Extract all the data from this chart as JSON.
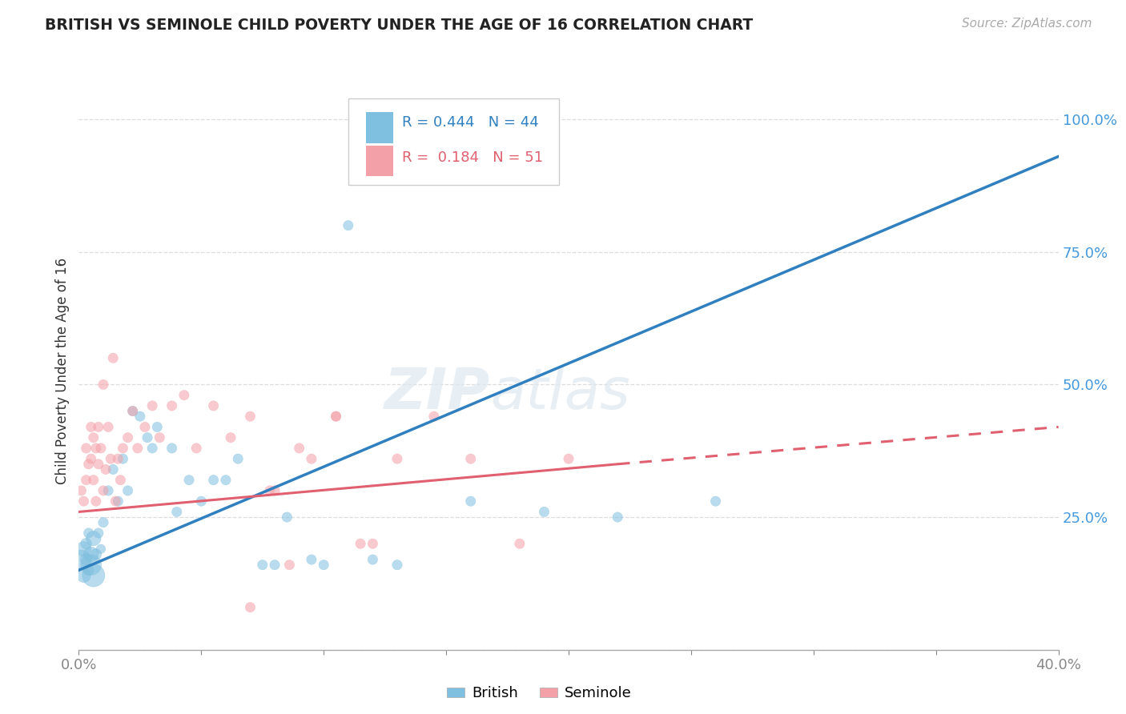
{
  "title": "BRITISH VS SEMINOLE CHILD POVERTY UNDER THE AGE OF 16 CORRELATION CHART",
  "source": "Source: ZipAtlas.com",
  "ylabel": "Child Poverty Under the Age of 16",
  "xlim": [
    0.0,
    0.4
  ],
  "ylim": [
    0.0,
    1.05
  ],
  "british_R": 0.444,
  "british_N": 44,
  "seminole_R": 0.184,
  "seminole_N": 51,
  "british_color": "#7fbfdf",
  "seminole_color": "#f4a0a8",
  "british_line_color": "#3080c0",
  "seminole_line_color": "#e06070",
  "british_line": {
    "x0": 0.0,
    "y0": 0.15,
    "x1": 0.4,
    "y1": 0.93
  },
  "seminole_line_solid": {
    "x0": 0.0,
    "y0": 0.26,
    "x1": 0.22,
    "y1": 0.35
  },
  "seminole_line_dash": {
    "x0": 0.22,
    "y0": 0.35,
    "x1": 0.4,
    "y1": 0.42
  },
  "british_x": [
    0.001,
    0.002,
    0.002,
    0.003,
    0.003,
    0.004,
    0.004,
    0.005,
    0.005,
    0.006,
    0.006,
    0.007,
    0.008,
    0.009,
    0.01,
    0.012,
    0.014,
    0.016,
    0.018,
    0.02,
    0.022,
    0.025,
    0.028,
    0.032,
    0.038,
    0.045,
    0.055,
    0.065,
    0.08,
    0.095,
    0.11,
    0.13,
    0.16,
    0.19,
    0.22,
    0.26,
    0.1,
    0.12,
    0.085,
    0.075,
    0.06,
    0.05,
    0.04,
    0.03
  ],
  "british_y": [
    0.17,
    0.19,
    0.14,
    0.17,
    0.2,
    0.15,
    0.22,
    0.16,
    0.18,
    0.14,
    0.21,
    0.18,
    0.22,
    0.19,
    0.24,
    0.3,
    0.34,
    0.28,
    0.36,
    0.3,
    0.45,
    0.44,
    0.4,
    0.42,
    0.38,
    0.32,
    0.32,
    0.36,
    0.16,
    0.17,
    0.8,
    0.16,
    0.28,
    0.26,
    0.25,
    0.28,
    0.16,
    0.17,
    0.25,
    0.16,
    0.32,
    0.28,
    0.26,
    0.38
  ],
  "british_sizes": [
    300,
    180,
    160,
    120,
    100,
    90,
    80,
    350,
    180,
    420,
    180,
    100,
    80,
    70,
    80,
    80,
    80,
    80,
    80,
    80,
    80,
    80,
    80,
    80,
    80,
    80,
    80,
    80,
    80,
    80,
    80,
    80,
    80,
    80,
    80,
    80,
    80,
    80,
    80,
    80,
    80,
    80,
    80,
    80
  ],
  "seminole_x": [
    0.001,
    0.002,
    0.003,
    0.003,
    0.004,
    0.005,
    0.005,
    0.006,
    0.006,
    0.007,
    0.007,
    0.008,
    0.008,
    0.009,
    0.01,
    0.01,
    0.011,
    0.012,
    0.013,
    0.014,
    0.015,
    0.016,
    0.017,
    0.018,
    0.02,
    0.022,
    0.024,
    0.027,
    0.03,
    0.033,
    0.038,
    0.043,
    0.048,
    0.055,
    0.062,
    0.07,
    0.078,
    0.086,
    0.095,
    0.105,
    0.115,
    0.13,
    0.145,
    0.16,
    0.18,
    0.2,
    0.105,
    0.12,
    0.09,
    0.08,
    0.07
  ],
  "seminole_y": [
    0.3,
    0.28,
    0.38,
    0.32,
    0.35,
    0.42,
    0.36,
    0.4,
    0.32,
    0.38,
    0.28,
    0.35,
    0.42,
    0.38,
    0.5,
    0.3,
    0.34,
    0.42,
    0.36,
    0.55,
    0.28,
    0.36,
    0.32,
    0.38,
    0.4,
    0.45,
    0.38,
    0.42,
    0.46,
    0.4,
    0.46,
    0.48,
    0.38,
    0.46,
    0.4,
    0.44,
    0.3,
    0.16,
    0.36,
    0.44,
    0.2,
    0.36,
    0.44,
    0.36,
    0.2,
    0.36,
    0.44,
    0.2,
    0.38,
    0.3,
    0.08
  ],
  "seminole_sizes": [
    80,
    80,
    80,
    80,
    80,
    80,
    80,
    80,
    80,
    80,
    80,
    80,
    80,
    80,
    80,
    80,
    80,
    80,
    80,
    80,
    80,
    80,
    80,
    80,
    80,
    80,
    80,
    80,
    80,
    80,
    80,
    80,
    80,
    80,
    80,
    80,
    80,
    80,
    80,
    80,
    80,
    80,
    80,
    80,
    80,
    80,
    80,
    80,
    80,
    80,
    80
  ]
}
